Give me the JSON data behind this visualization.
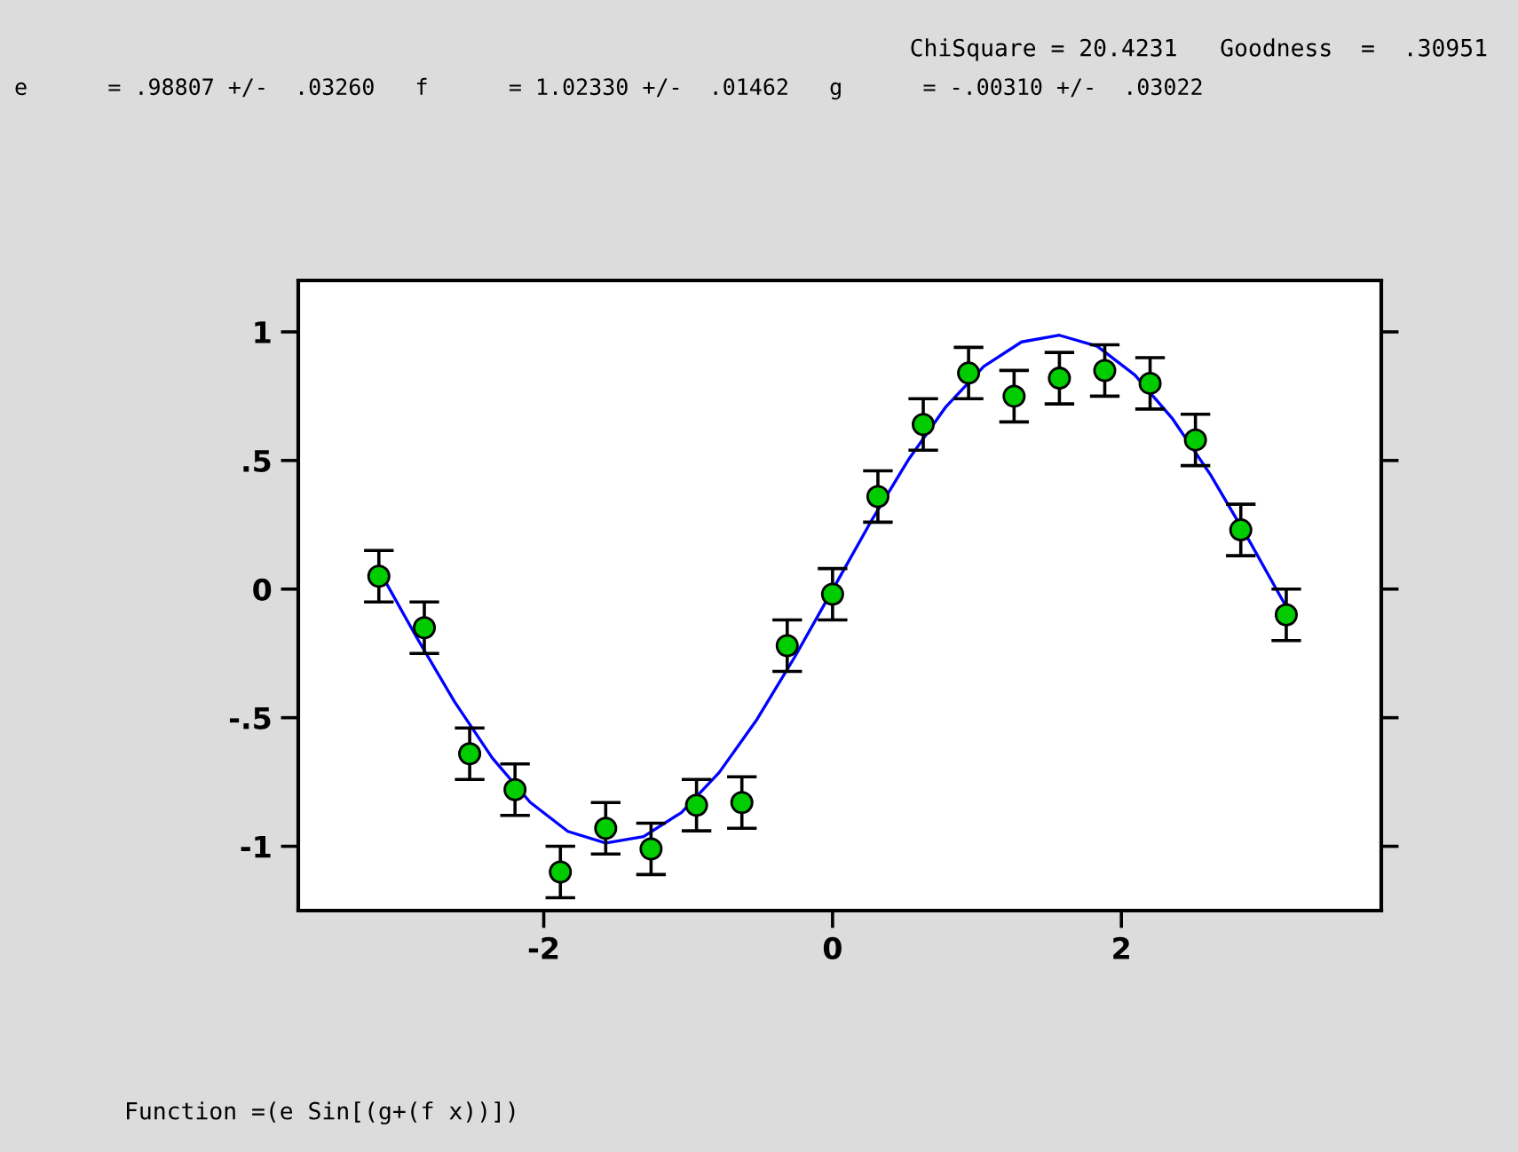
{
  "chart_data": {
    "type": "scatter",
    "annotations": [
      "ChiSquare = 20.4231   Goodness  =  .30951",
      "e      = .98807 +/-  .03260   f      = 1.02330 +/-  .01462   g      = -.00310 +/-  .03022",
      "Function =(e Sin[(g+(f x))])"
    ],
    "series": [
      {
        "type": "line",
        "color": "#0000ff",
        "marker": "none",
        "x": [
          -3.142,
          -2.88,
          -2.618,
          -2.356,
          -2.094,
          -1.833,
          -1.571,
          -1.309,
          -1.047,
          -0.785,
          -0.524,
          -0.262,
          0,
          0.262,
          0.524,
          0.785,
          1.047,
          1.309,
          1.571,
          1.833,
          2.094,
          2.356,
          2.618,
          2.88,
          3.142
        ],
        "values": [
          0.075,
          -0.188,
          -0.438,
          -0.657,
          -0.829,
          -0.942,
          -0.987,
          -0.962,
          -0.869,
          -0.713,
          -0.507,
          -0.264,
          -0.003,
          0.259,
          0.502,
          0.709,
          0.866,
          0.961,
          0.987,
          0.944,
          0.832,
          0.661,
          0.444,
          0.194,
          -0.069
        ]
      },
      {
        "color": "#00cc00",
        "marker": "circle",
        "x": [
          -3.142,
          -2.827,
          -2.513,
          -2.199,
          -1.885,
          -1.571,
          -1.257,
          -0.942,
          -0.628,
          -0.314,
          0,
          0.314,
          0.628,
          0.942,
          1.257,
          1.571,
          1.885,
          2.199,
          2.513,
          2.827,
          3.142
        ],
        "values": [
          0.05,
          -0.15,
          -0.64,
          -0.78,
          -1.1,
          -0.93,
          -1.01,
          -0.84,
          -0.83,
          -0.22,
          -0.02,
          0.36,
          0.64,
          0.84,
          0.75,
          0.82,
          0.85,
          0.8,
          0.58,
          0.23,
          -0.1
        ],
        "errors": [
          0.1,
          0.1,
          0.1,
          0.1,
          0.1,
          0.1,
          0.1,
          0.1,
          0.1,
          0.1,
          0.1,
          0.1,
          0.1,
          0.1,
          0.1,
          0.1,
          0.1,
          0.1,
          0.1,
          0.1,
          0.1
        ]
      }
    ],
    "xlim": [
      -3.7,
      3.8
    ],
    "ylim": [
      -1.25,
      1.2
    ],
    "xticks": [
      -2,
      0,
      2
    ],
    "yticks": [
      {
        "value": 1,
        "label": "1"
      },
      {
        "value": 0.5,
        "label": ".5"
      },
      {
        "value": 0,
        "label": "0"
      },
      {
        "value": -0.5,
        "label": "-.5"
      },
      {
        "value": -1,
        "label": "-1"
      }
    ],
    "grid": false,
    "legend": false
  }
}
